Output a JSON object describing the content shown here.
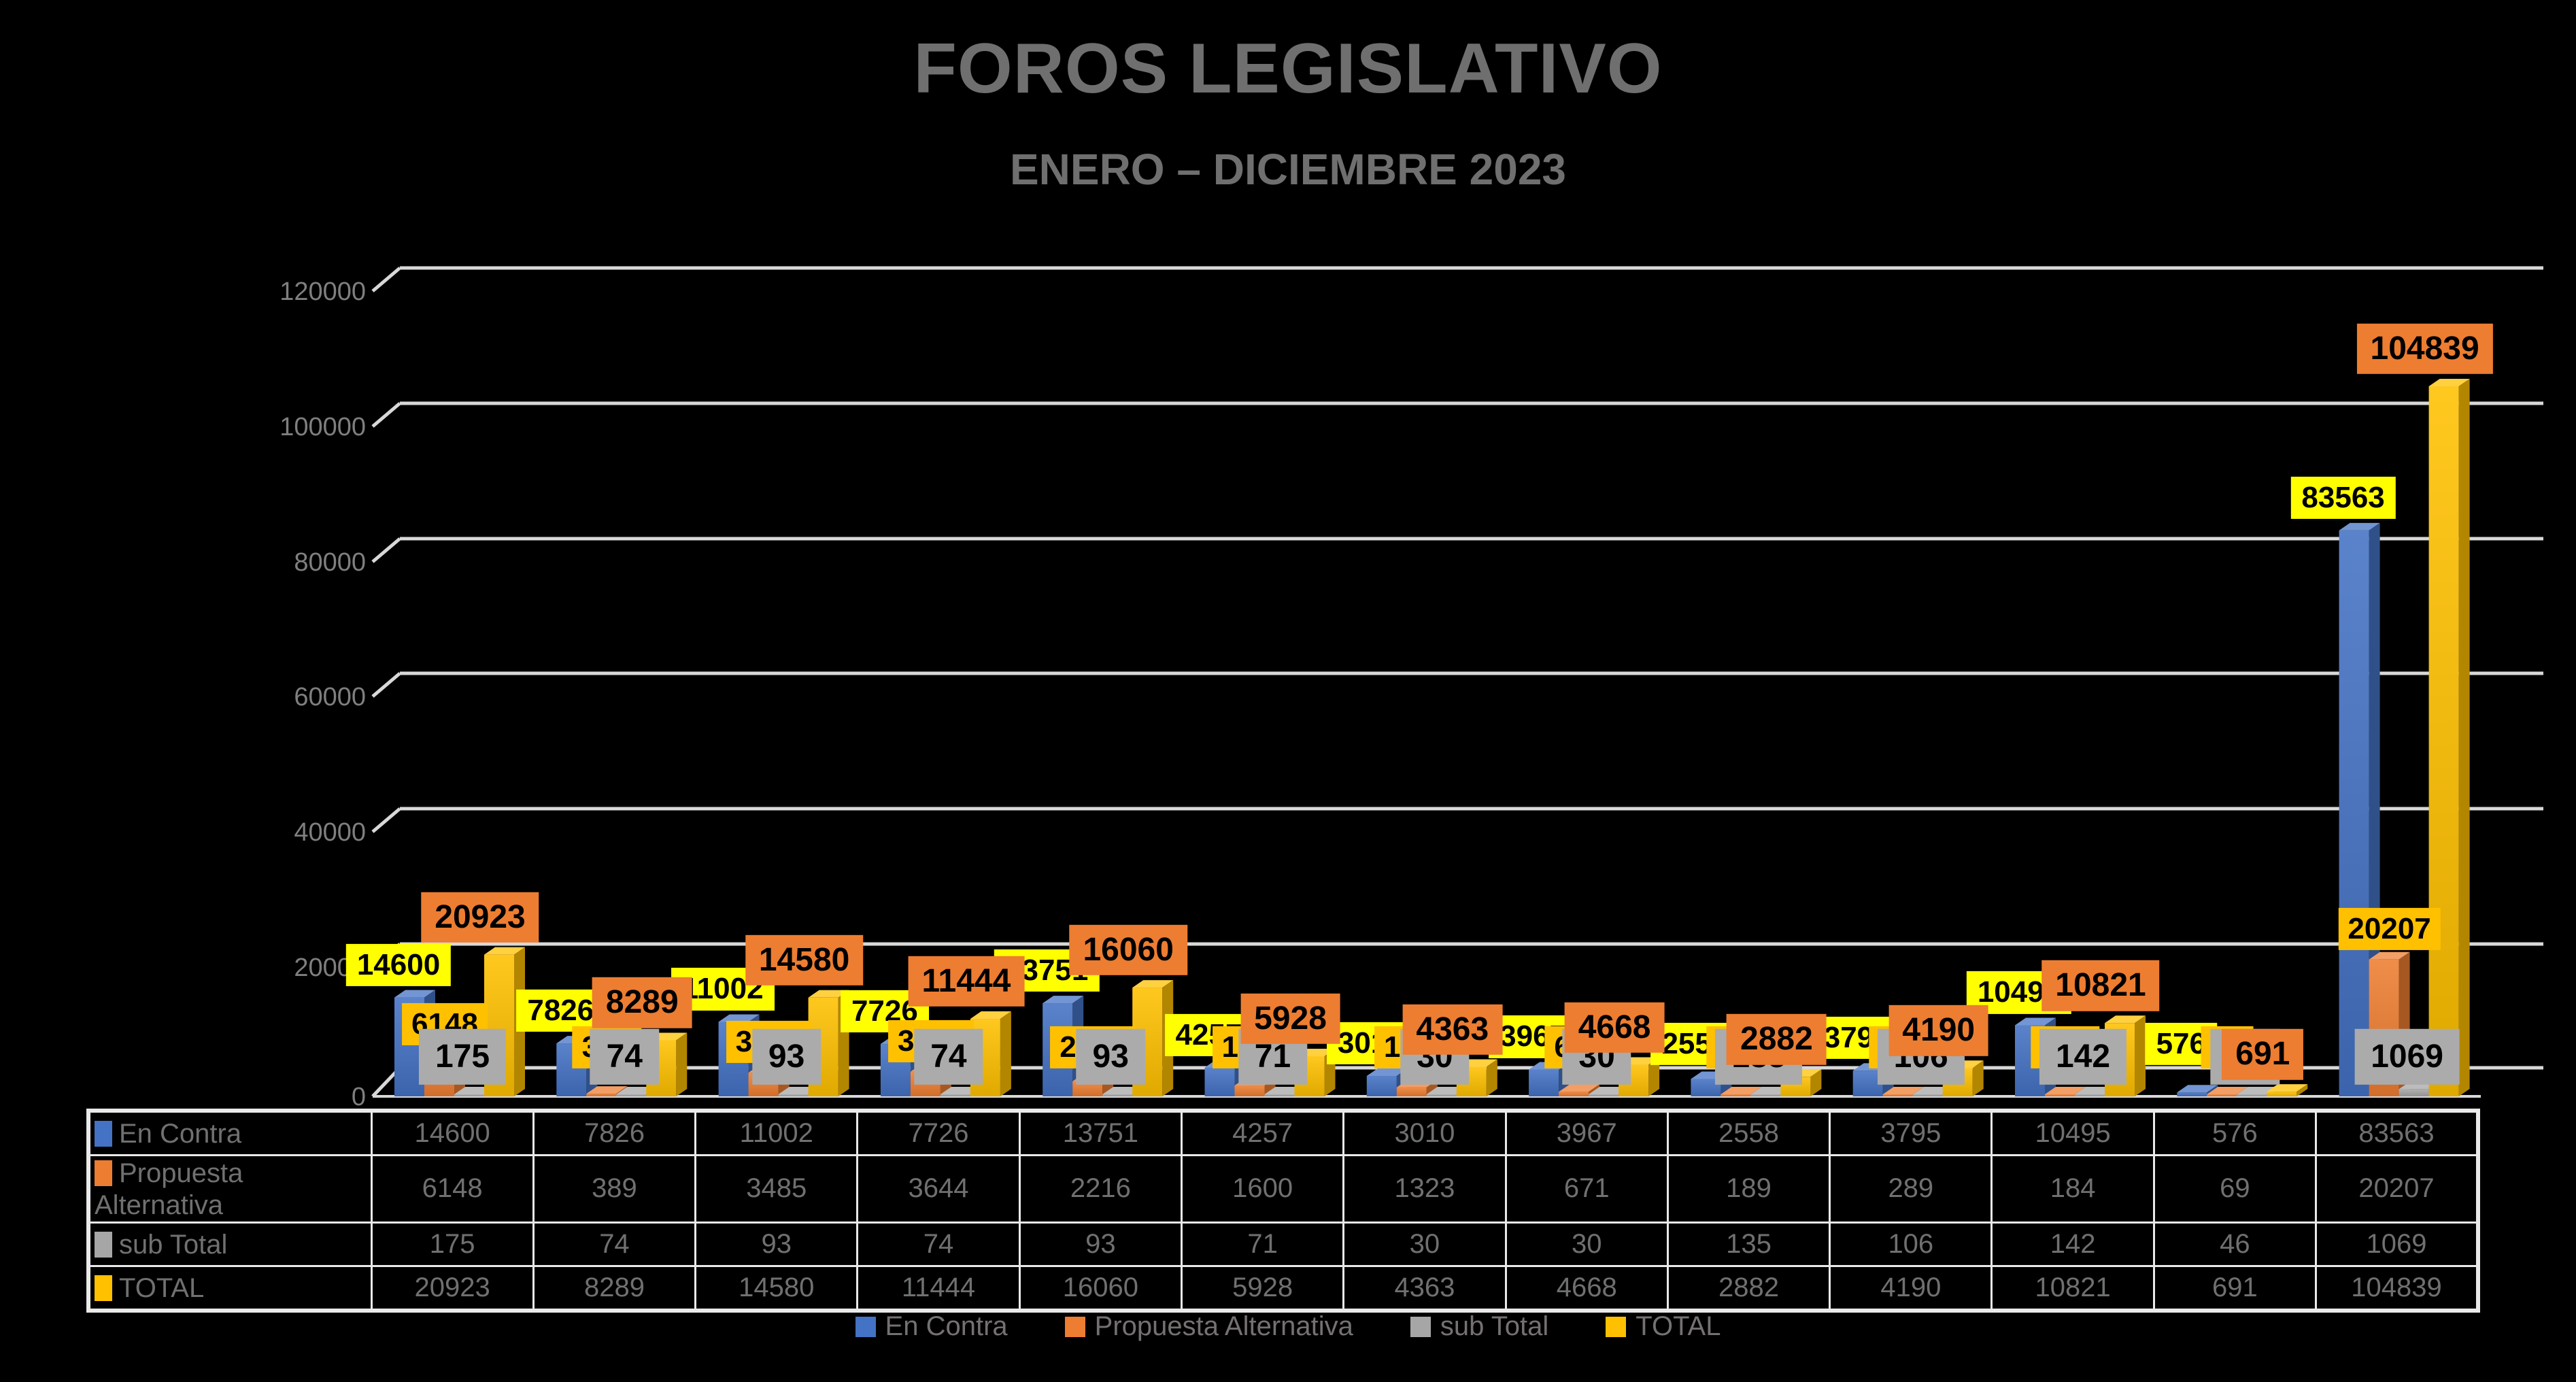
{
  "chart_data": {
    "type": "bar",
    "style": "3d-clustered-column",
    "title": "FOROS LEGISLATIVO",
    "subtitle": "ENERO – DICIEMBRE 2023",
    "background": "#000000",
    "group_count": 13,
    "series": [
      {
        "name": "En Contra",
        "color": "#4472C4",
        "label_bg": "#FFFF00",
        "values": [
          14600,
          7826,
          11002,
          7726,
          13751,
          4257,
          3010,
          3967,
          2558,
          3795,
          10495,
          576,
          83563
        ]
      },
      {
        "name": "Propuesta Alternativa",
        "color": "#ED7D31",
        "label_bg": "#FFC000",
        "values": [
          6148,
          389,
          3485,
          3644,
          2216,
          1600,
          1323,
          671,
          189,
          289,
          184,
          69,
          20207
        ]
      },
      {
        "name": "sub Total",
        "color": "#A6A6A6",
        "label_bg": "#ABABAB",
        "values": [
          175,
          74,
          93,
          74,
          93,
          71,
          30,
          30,
          135,
          106,
          142,
          46,
          1069
        ]
      },
      {
        "name": "TOTAL",
        "color": "#FFC000",
        "label_bg": "#ED7D31",
        "values": [
          20923,
          8289,
          14580,
          11444,
          16060,
          5928,
          4363,
          4668,
          2882,
          4190,
          10821,
          691,
          104839
        ]
      }
    ],
    "ylabel": "",
    "xlabel": "",
    "ylim": [
      0,
      120000
    ],
    "ytick_step": 20000,
    "ytick_labels": [
      "0",
      "20000",
      "40000",
      "60000",
      "80000",
      "100000",
      "120000"
    ],
    "grid": true,
    "gridline_color": "#D8D8D8",
    "axis_label_color": "#7F7F7F",
    "title_color": "#6F6F6F",
    "table_text_color": "#6F7070",
    "legend_position": "bottom",
    "show_data_table": true,
    "data_labels_shown": true
  }
}
